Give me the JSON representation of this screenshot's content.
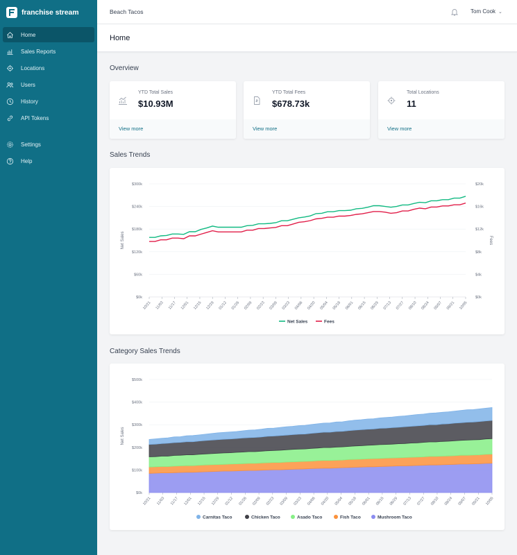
{
  "brand": {
    "name": "franchise stream"
  },
  "sidebar": {
    "items": [
      {
        "label": "Home",
        "icon": "home-icon",
        "active": true
      },
      {
        "label": "Sales Reports",
        "icon": "bar-chart-icon"
      },
      {
        "label": "Locations",
        "icon": "location-icon"
      },
      {
        "label": "Users",
        "icon": "users-icon"
      },
      {
        "label": "History",
        "icon": "clock-icon"
      },
      {
        "label": "API Tokens",
        "icon": "link-icon"
      }
    ],
    "bottom_items": [
      {
        "label": "Settings",
        "icon": "gear-icon"
      },
      {
        "label": "Help",
        "icon": "help-icon"
      }
    ]
  },
  "topbar": {
    "organization": "Beach Tacos",
    "user_name": "Tom Cook",
    "user_caret": "⌄"
  },
  "page": {
    "title": "Home"
  },
  "overview": {
    "title": "Overview",
    "cards": [
      {
        "label": "YTD Total Sales",
        "value": "$10.93M",
        "link": "View more",
        "icon": "chart-icon"
      },
      {
        "label": "YTD Total Fees",
        "value": "$678.73k",
        "link": "View more",
        "icon": "document-icon"
      },
      {
        "label": "Total Locations",
        "value": "11",
        "link": "View more",
        "icon": "target-icon"
      }
    ]
  },
  "sales_trends": {
    "title": "Sales Trends"
  },
  "category_trends": {
    "title": "Category Sales Trends"
  },
  "chart_data": [
    {
      "type": "line",
      "ylabel": "Net Sales",
      "y2label": "Fees",
      "ylim": [
        0,
        300000
      ],
      "y2lim": [
        0,
        20000
      ],
      "yticks": [
        "$0k",
        "$60k",
        "$120k",
        "$180k",
        "$240k",
        "$300k"
      ],
      "y2ticks": [
        "$0k",
        "$4k",
        "$8k",
        "$12k",
        "$16k",
        "$20k"
      ],
      "xticks": [
        "10/21",
        "11/03",
        "11/17",
        "12/01",
        "12/15",
        "12/29",
        "01/12",
        "01/26",
        "02/09",
        "02/23",
        "03/09",
        "03/23",
        "04/06",
        "04/20",
        "05/04",
        "05/18",
        "06/01",
        "06/15",
        "06/29",
        "07/13",
        "07/27",
        "08/10",
        "08/24",
        "09/07",
        "09/21",
        "10/05"
      ],
      "grid": true,
      "legend_position": "bottom",
      "series": [
        {
          "name": "Net Sales",
          "color": "#10b981",
          "axis": "left",
          "values": [
            158000,
            158000,
            162000,
            163000,
            167000,
            167000,
            166000,
            173000,
            173000,
            179000,
            183000,
            188000,
            185000,
            185000,
            185000,
            185000,
            185000,
            189000,
            190000,
            194000,
            194000,
            195000,
            197000,
            202000,
            202000,
            206000,
            210000,
            212000,
            215000,
            221000,
            222000,
            226000,
            226000,
            229000,
            229000,
            230000,
            234000,
            235000,
            238000,
            242000,
            242000,
            240000,
            238000,
            240000,
            244000,
            244000,
            248000,
            251000,
            250000,
            255000,
            255000,
            258000,
            258000,
            262000,
            262000,
            267000
          ]
        },
        {
          "name": "Fees",
          "color": "#e11d48",
          "axis": "right",
          "values": [
            9800,
            9800,
            10100,
            10100,
            10400,
            10400,
            10300,
            10800,
            10800,
            11100,
            11400,
            11700,
            11500,
            11500,
            11500,
            11500,
            11500,
            11800,
            11800,
            12100,
            12100,
            12200,
            12300,
            12600,
            12600,
            12900,
            13200,
            13300,
            13500,
            13800,
            13900,
            14100,
            14100,
            14300,
            14300,
            14400,
            14600,
            14700,
            14900,
            15100,
            15100,
            15000,
            14800,
            14900,
            15200,
            15200,
            15500,
            15700,
            15600,
            15900,
            15900,
            16100,
            16100,
            16300,
            16300,
            16600
          ]
        }
      ]
    },
    {
      "type": "area",
      "stacked": true,
      "ylabel": "Net Sales",
      "ylim": [
        0,
        500000
      ],
      "yticks": [
        "$0k",
        "$100k",
        "$200k",
        "$300k",
        "$400k",
        "$500k"
      ],
      "xticks": [
        "10/21",
        "11/03",
        "11/17",
        "12/01",
        "12/15",
        "12/29",
        "01/12",
        "01/26",
        "02/09",
        "02/23",
        "03/09",
        "03/23",
        "04/06",
        "04/20",
        "05/04",
        "05/18",
        "06/01",
        "06/15",
        "06/29",
        "07/13",
        "07/27",
        "08/10",
        "08/24",
        "09/07",
        "09/21",
        "10/05"
      ],
      "grid": true,
      "legend_position": "bottom",
      "series": [
        {
          "name": "Mushroom Taco",
          "color": "#8b8cf0",
          "values": [
            85000,
            86000,
            87000,
            87000,
            88000,
            89000,
            90000,
            90000,
            91000,
            92000,
            93000,
            94000,
            95000,
            95000,
            96000,
            97000,
            98000,
            98000,
            99000,
            100000,
            101000,
            101000,
            102000,
            103000,
            104000,
            105000,
            106000,
            107000,
            108000,
            108000,
            109000,
            110000,
            111000,
            112000,
            113000,
            114000,
            114000,
            115000,
            116000,
            117000,
            118000,
            118000,
            119000,
            120000,
            121000,
            122000,
            122000,
            123000,
            124000,
            125000,
            126000,
            126000,
            127000,
            128000,
            129000,
            130000
          ]
        },
        {
          "name": "Fish Taco",
          "color": "#fb923c",
          "values": [
            28000,
            28000,
            28000,
            28000,
            29000,
            29000,
            29000,
            29000,
            30000,
            30000,
            30000,
            30000,
            30000,
            31000,
            31000,
            31000,
            31000,
            31000,
            32000,
            32000,
            32000,
            32000,
            33000,
            33000,
            33000,
            33000,
            33000,
            34000,
            34000,
            34000,
            34000,
            34000,
            35000,
            35000,
            35000,
            35000,
            36000,
            36000,
            36000,
            36000,
            36000,
            37000,
            37000,
            37000,
            37000,
            38000,
            38000,
            38000,
            38000,
            38000,
            39000,
            39000,
            39000,
            39000,
            40000,
            40000
          ]
        },
        {
          "name": "Asado Taco",
          "color": "#86ef86",
          "values": [
            45000,
            45000,
            46000,
            46000,
            47000,
            47000,
            48000,
            48000,
            48000,
            49000,
            49000,
            50000,
            50000,
            50000,
            51000,
            51000,
            52000,
            52000,
            52000,
            53000,
            53000,
            54000,
            54000,
            55000,
            55000,
            55000,
            56000,
            56000,
            57000,
            57000,
            58000,
            58000,
            58000,
            59000,
            59000,
            60000,
            60000,
            61000,
            61000,
            61000,
            62000,
            62000,
            63000,
            63000,
            64000,
            64000,
            64000,
            65000,
            65000,
            66000,
            66000,
            67000,
            67000,
            67000,
            68000,
            68000
          ]
        },
        {
          "name": "Chicken Taco",
          "color": "#3f3f46",
          "values": [
            55000,
            55000,
            56000,
            57000,
            57000,
            57000,
            58000,
            58000,
            59000,
            59000,
            60000,
            60000,
            61000,
            61000,
            61000,
            62000,
            62000,
            63000,
            63000,
            64000,
            64000,
            65000,
            65000,
            65000,
            66000,
            66000,
            67000,
            67000,
            68000,
            68000,
            69000,
            69000,
            70000,
            70000,
            71000,
            71000,
            71000,
            72000,
            72000,
            73000,
            73000,
            74000,
            74000,
            75000,
            75000,
            76000,
            76000,
            77000,
            77000,
            78000,
            78000,
            79000,
            79000,
            80000,
            80000,
            81000
          ]
        },
        {
          "name": "Carnitas Taco",
          "color": "#7fb3e8",
          "values": [
            22000,
            23000,
            23000,
            24000,
            25000,
            25000,
            26000,
            27000,
            27000,
            28000,
            29000,
            30000,
            30000,
            31000,
            31000,
            32000,
            33000,
            33000,
            34000,
            35000,
            35000,
            36000,
            37000,
            37000,
            38000,
            38000,
            39000,
            40000,
            40000,
            41000,
            42000,
            42000,
            43000,
            44000,
            44000,
            45000,
            45000,
            46000,
            47000,
            47000,
            48000,
            48000,
            49000,
            50000,
            50000,
            51000,
            52000,
            52000,
            53000,
            53000,
            54000,
            55000,
            55000,
            56000,
            56000,
            57000
          ]
        }
      ]
    }
  ]
}
